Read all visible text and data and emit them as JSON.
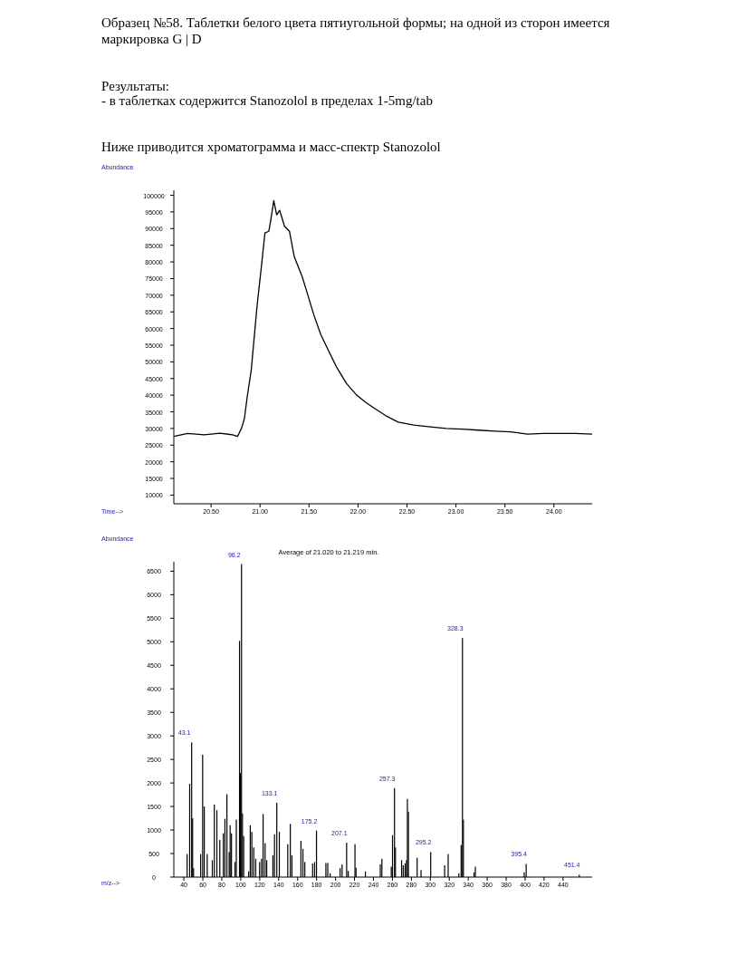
{
  "chart_data": [
    {
      "type": "line",
      "title": "Образец №58. Таблетки белого цвета пятиугольной формы; на одной из сторон имеется маркировка G | D",
      "annotations": [
        "Результаты:",
        "- в таблетках содержится Stanozolol в пределах 1-5mg/tab",
        "Ниже приводится хроматограмма и масс-спектр Stanozolol"
      ],
      "xlabel": "Time-->",
      "ylabel": "Abundance",
      "color": "#000000",
      "x": [
        20.12,
        20.26,
        20.43,
        20.59,
        20.72,
        20.77,
        20.81,
        20.84,
        20.87,
        20.91,
        20.94,
        20.97,
        21.01,
        21.05,
        21.09,
        21.11,
        21.14,
        21.17,
        21.2,
        21.25,
        21.3,
        21.35,
        21.43,
        21.48,
        21.55,
        21.62,
        21.7,
        21.78,
        21.88,
        21.98,
        22.08,
        22.18,
        22.28,
        22.41,
        22.57,
        22.74,
        22.9,
        23.07,
        23.23,
        23.4,
        23.56,
        23.73,
        23.89,
        24.06,
        24.22,
        24.39
      ],
      "values": [
        27600,
        28500,
        28100,
        28600,
        28100,
        27600,
        30000,
        32900,
        39700,
        47500,
        57200,
        66900,
        77600,
        88700,
        89200,
        92600,
        98400,
        94100,
        95500,
        90700,
        89200,
        81500,
        75600,
        70800,
        64000,
        58200,
        53300,
        48500,
        43600,
        40200,
        37800,
        35800,
        33900,
        31900,
        31000,
        30500,
        30000,
        29800,
        29500,
        29200,
        29000,
        28300,
        28500,
        28500,
        28500,
        28300
      ],
      "xlim": [
        20.12,
        24.39
      ],
      "ylim": [
        7400,
        101500
      ],
      "xticks": [
        {
          "value": 20.5,
          "label": "20.50"
        },
        {
          "value": 21,
          "label": "21.00"
        },
        {
          "value": 21.5,
          "label": "21.50"
        },
        {
          "value": 22,
          "label": "22.00"
        },
        {
          "value": 22.5,
          "label": "22.50"
        },
        {
          "value": 23,
          "label": "23.00"
        },
        {
          "value": 23.5,
          "label": "23.50"
        },
        {
          "value": 24,
          "label": "24.00"
        }
      ],
      "yticks": [
        10000,
        15000,
        20000,
        25000,
        30000,
        35000,
        40000,
        45000,
        50000,
        55000,
        60000,
        65000,
        70000,
        75000,
        80000,
        85000,
        90000,
        95000,
        100000
      ]
    },
    {
      "type": "bar",
      "title": "Average of 21.020 to 21.219 min.",
      "xlabel": "m/z-->",
      "ylabel": "Abundance",
      "color": "#000000",
      "x": [
        43.4,
        46.1,
        48.2,
        49.2,
        50.2,
        57.7,
        59.8,
        61.5,
        64.6,
        70.0,
        72.1,
        74.8,
        77.9,
        81.6,
        83.3,
        85.4,
        87.8,
        88.8,
        90.2,
        93.9,
        95.3,
        98.7,
        99.7,
        100.8,
        101.8,
        103.1,
        108.3,
        110.0,
        111.7,
        113.7,
        115.8,
        119.9,
        121.9,
        123.6,
        125.7,
        127.4,
        133.9,
        135.6,
        138.0,
        140.7,
        149.6,
        152.3,
        154.0,
        163.5,
        165.6,
        167.6,
        175.8,
        177.9,
        179.9,
        189.8,
        191.8,
        194.3,
        204.8,
        206.9,
        211.7,
        213.4,
        220.5,
        221.6,
        231.5,
        247.2,
        248.9,
        258.8,
        260.1,
        262.2,
        263.2,
        269.7,
        271.4,
        273.4,
        274.8,
        275.8,
        276.9,
        286.1,
        290.2,
        300.4,
        315.1,
        318.8,
        330.1,
        332.5,
        333.9,
        334.9,
        346.1,
        347.5,
        399.0,
        401.1,
        457.1
      ],
      "values": [
        490,
        1980,
        2860,
        1250,
        190,
        490,
        2600,
        1500,
        490,
        360,
        1540,
        1420,
        790,
        930,
        1240,
        1760,
        530,
        1100,
        930,
        320,
        1220,
        5020,
        2210,
        6650,
        1350,
        870,
        120,
        1100,
        960,
        630,
        390,
        320,
        390,
        1340,
        720,
        360,
        460,
        910,
        1580,
        960,
        700,
        1130,
        460,
        770,
        600,
        320,
        290,
        320,
        990,
        300,
        300,
        80,
        190,
        270,
        730,
        130,
        700,
        200,
        120,
        270,
        390,
        220,
        890,
        1890,
        630,
        360,
        250,
        290,
        360,
        1660,
        1390,
        410,
        150,
        530,
        250,
        490,
        80,
        680,
        5080,
        1220,
        100,
        220,
        100,
        280,
        50
      ],
      "xlim": [
        29.4,
        470.7
      ],
      "ylim": [
        0,
        6700
      ],
      "xticks": [
        40,
        60,
        80,
        100,
        120,
        140,
        160,
        180,
        200,
        220,
        240,
        260,
        280,
        300,
        320,
        340,
        360,
        380,
        400,
        420,
        440
      ],
      "yticks": [
        0,
        500,
        1000,
        1500,
        2000,
        2500,
        3000,
        3500,
        4000,
        4500,
        5000,
        5500,
        6000,
        6500
      ],
      "annotations": [
        {
          "text": "43.1",
          "x": 48.2,
          "y": 2860
        },
        {
          "text": "96.2",
          "x": 100.8,
          "y": 6650
        },
        {
          "text": "133.1",
          "x": 138.0,
          "y": 1580
        },
        {
          "text": "175.2",
          "x": 179.9,
          "y": 990
        },
        {
          "text": "207.1",
          "x": 211.7,
          "y": 730
        },
        {
          "text": "257.3",
          "x": 262.2,
          "y": 1890
        },
        {
          "text": "295.2",
          "x": 300.4,
          "y": 530
        },
        {
          "text": "328.3",
          "x": 333.9,
          "y": 5080
        },
        {
          "text": "395.4",
          "x": 401.1,
          "y": 280
        },
        {
          "text": "451.4",
          "x": 457.1,
          "y": 50
        }
      ]
    }
  ]
}
